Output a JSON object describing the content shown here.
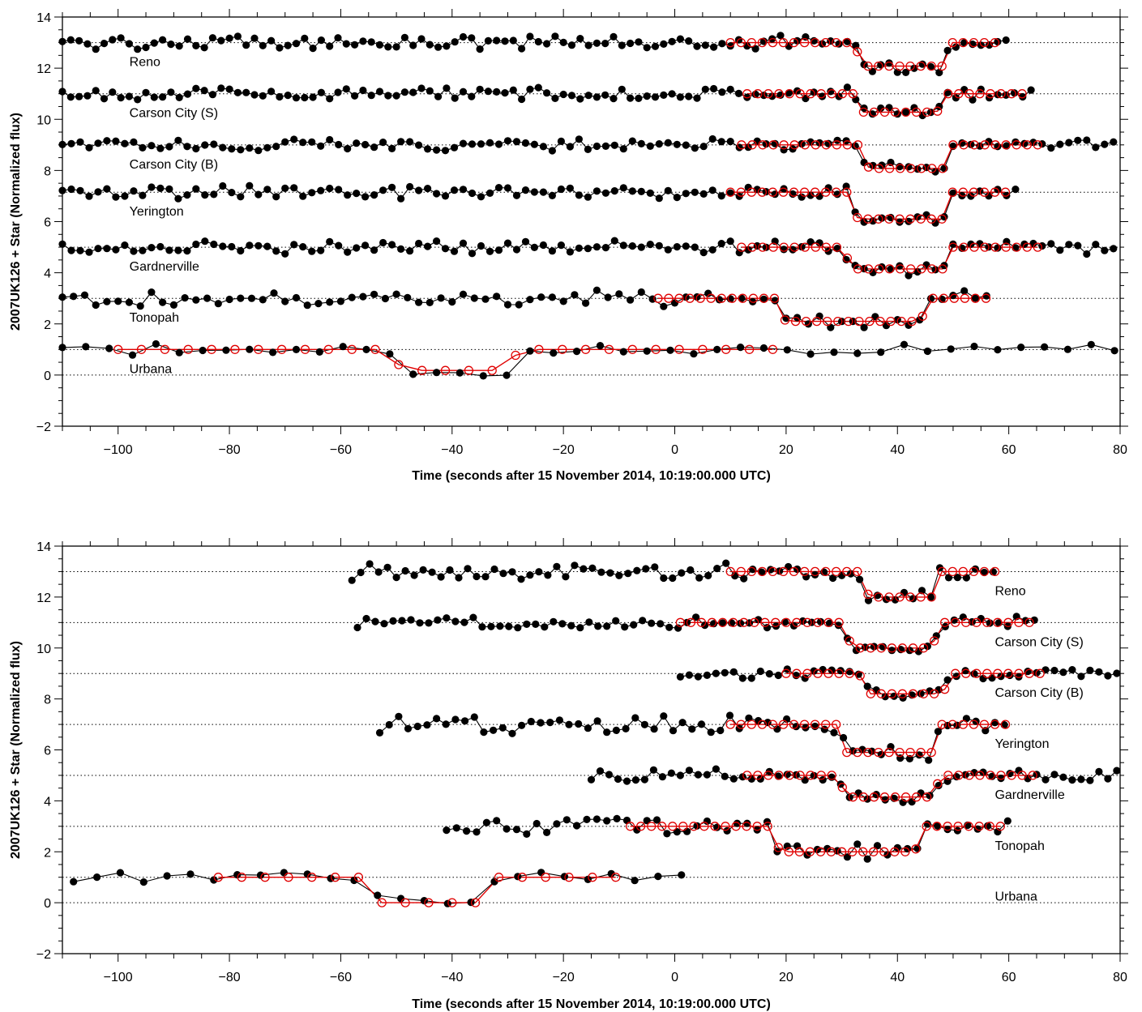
{
  "chart_data": [
    {
      "type": "line",
      "panel": "top",
      "xlabel": "Time (seconds after 15 November 2014, 10:19:00.000 UTC)",
      "ylabel": "2007UK126 + Star (Normalized flux)",
      "xlim": [
        -110,
        80
      ],
      "ylim": [
        -2,
        14
      ],
      "xticks": [
        -100,
        -80,
        -60,
        -40,
        -20,
        0,
        20,
        40,
        60,
        80
      ],
      "yticks": [
        -2,
        0,
        2,
        4,
        6,
        8,
        10,
        12,
        14
      ],
      "grid": "dotted horizontal baselines at each site offset",
      "series_styles": {
        "observed": "black filled circles with line",
        "model": "red open circles with line"
      },
      "sites": [
        {
          "name": "Reno",
          "offset": 13,
          "obs_range": [
            -110,
            60
          ],
          "obs_step": 1.5,
          "noise": 0.23,
          "model_range": [
            10,
            58
          ],
          "model_step": 1.9,
          "event": {
            "ingress": 33,
            "egress": 49,
            "depth": 0.92
          }
        },
        {
          "name": "Carson City (S)",
          "offset": 11,
          "obs_range": [
            -110,
            65
          ],
          "obs_step": 1.5,
          "noise": 0.2,
          "model_range": [
            13,
            63
          ],
          "model_step": 1.9,
          "event": {
            "ingress": 33,
            "egress": 48,
            "depth": 0.72
          }
        },
        {
          "name": "Carson City (B)",
          "offset": 9,
          "obs_range": [
            -110,
            80
          ],
          "obs_step": 1.6,
          "noise": 0.2,
          "model_range": [
            12,
            67
          ],
          "model_step": 1.9,
          "event": {
            "ingress": 34,
            "egress": 49,
            "depth": 0.92
          }
        },
        {
          "name": "Yerington",
          "offset": 7.15,
          "obs_range": [
            -110,
            62
          ],
          "obs_step": 1.6,
          "noise": 0.22,
          "model_range": [
            10,
            60
          ],
          "model_step": 1.9,
          "event": {
            "ingress": 32,
            "egress": 49,
            "depth": 1.05
          }
        },
        {
          "name": "Gardnerville",
          "offset": 5,
          "obs_range": [
            -110,
            80
          ],
          "obs_step": 1.6,
          "noise": 0.22,
          "model_range": [
            12,
            67
          ],
          "model_step": 1.9,
          "event": {
            "ingress": 31,
            "egress": 49,
            "depth": 0.85
          }
        },
        {
          "name": "Tonopah",
          "offset": 3,
          "obs_range": [
            -110,
            57
          ],
          "obs_step": 2.0,
          "noise": 0.25,
          "model_range": [
            -3,
            57
          ],
          "model_step": 1.9,
          "event": {
            "ingress": 19,
            "egress": 45,
            "depth": 0.9
          }
        },
        {
          "name": "Urbana",
          "offset": 1,
          "obs_range": [
            -110,
            80
          ],
          "obs_step": 4.2,
          "noise": 0.18,
          "model_range": [
            -100,
            20
          ],
          "model_step": 4.2,
          "event": {
            "ingress": -50,
            "egress": -29,
            "depth": 0.82
          }
        }
      ]
    },
    {
      "type": "line",
      "panel": "bottom",
      "xlabel": "Time (seconds after 15 November 2014, 10:19:00.000 UTC)",
      "ylabel": "2007UK126 + Star (Normalized flux)",
      "xlim": [
        -110,
        80
      ],
      "ylim": [
        -2,
        14
      ],
      "xticks": [
        -100,
        -80,
        -60,
        -40,
        -20,
        0,
        20,
        40,
        60,
        80
      ],
      "yticks": [
        -2,
        0,
        2,
        4,
        6,
        8,
        10,
        12,
        14
      ],
      "grid": "dotted horizontal baselines at each site offset",
      "series_styles": {
        "observed": "black filled circles with line",
        "model": "red open circles with line"
      },
      "sites": [
        {
          "name": "Reno",
          "offset": 13,
          "obs_range": [
            -58,
            58
          ],
          "obs_step": 1.6,
          "noise": 0.28,
          "model_range": [
            10,
            58
          ],
          "model_step": 1.9,
          "event": {
            "ingress": 34,
            "egress": 47,
            "depth": 1.0
          }
        },
        {
          "name": "Carson City (S)",
          "offset": 11,
          "obs_range": [
            -57,
            65
          ],
          "obs_step": 1.6,
          "noise": 0.2,
          "model_range": [
            1,
            65
          ],
          "model_step": 1.9,
          "event": {
            "ingress": 31,
            "egress": 47,
            "depth": 1.0
          }
        },
        {
          "name": "Carson City (B)",
          "offset": 9,
          "obs_range": [
            1,
            80
          ],
          "obs_step": 1.6,
          "noise": 0.18,
          "model_range": [
            20,
            66
          ],
          "model_step": 1.9,
          "event": {
            "ingress": 34,
            "egress": 49,
            "depth": 0.8
          }
        },
        {
          "name": "Yerington",
          "offset": 7,
          "obs_range": [
            -53,
            60
          ],
          "obs_step": 1.7,
          "noise": 0.3,
          "model_range": [
            10,
            60
          ],
          "model_step": 1.9,
          "event": {
            "ingress": 30,
            "egress": 47,
            "depth": 1.1
          }
        },
        {
          "name": "Gardnerville",
          "offset": 5,
          "obs_range": [
            -15,
            80
          ],
          "obs_step": 1.6,
          "noise": 0.2,
          "model_range": [
            13,
            66
          ],
          "model_step": 1.9,
          "event": {
            "ingress": 30,
            "egress": 47,
            "depth": 0.85
          }
        },
        {
          "name": "Tonopah",
          "offset": 3,
          "obs_range": [
            -41,
            60
          ],
          "obs_step": 1.8,
          "noise": 0.25,
          "model_range": [
            -8,
            60
          ],
          "model_step": 1.9,
          "event": {
            "ingress": 18,
            "egress": 44,
            "depth": 1.0
          }
        },
        {
          "name": "Urbana",
          "offset": 1,
          "obs_range": [
            -108,
            4
          ],
          "obs_step": 4.2,
          "noise": 0.18,
          "model_range": [
            -82,
            -9
          ],
          "model_step": 4.2,
          "event": {
            "ingress": -54,
            "egress": -33,
            "depth": 1.0
          }
        }
      ]
    }
  ]
}
